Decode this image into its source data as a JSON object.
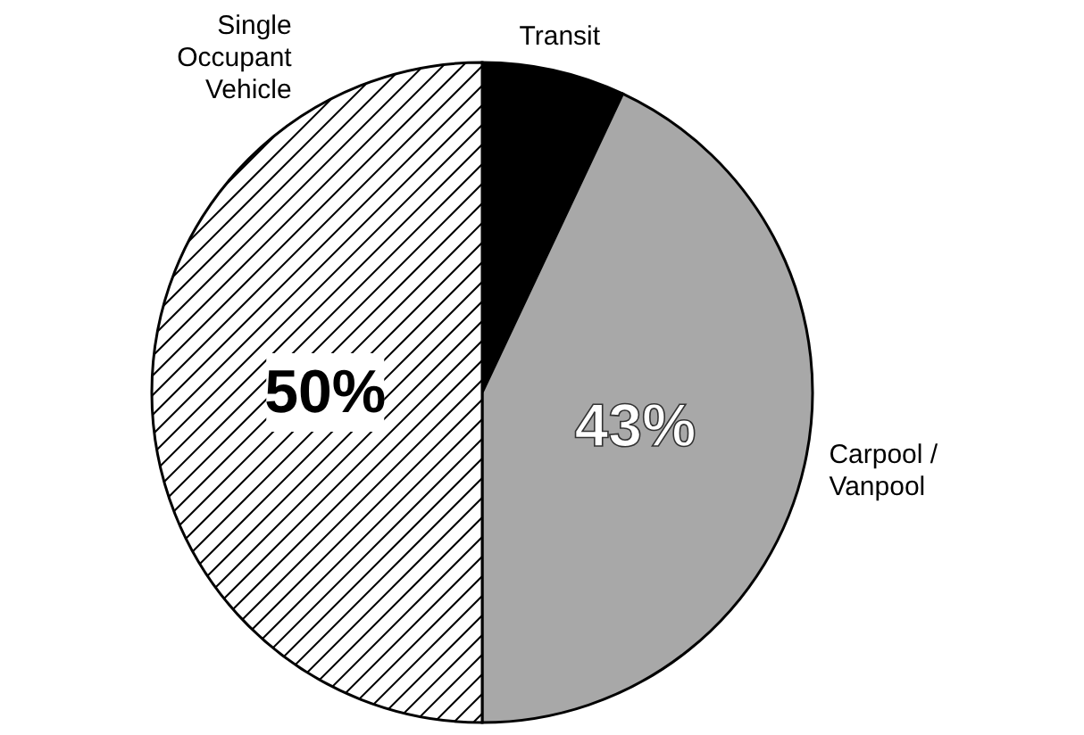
{
  "chart_data": {
    "type": "pie",
    "categories": [
      "Transit",
      "Carpool / Vanpool",
      "Single Occupant Vehicle"
    ],
    "values": [
      7,
      43,
      50
    ],
    "colors": [
      "#000000",
      "#a8a8a8",
      "#ffffff"
    ],
    "value_labels": [
      null,
      "43%",
      "50%"
    ]
  }
}
